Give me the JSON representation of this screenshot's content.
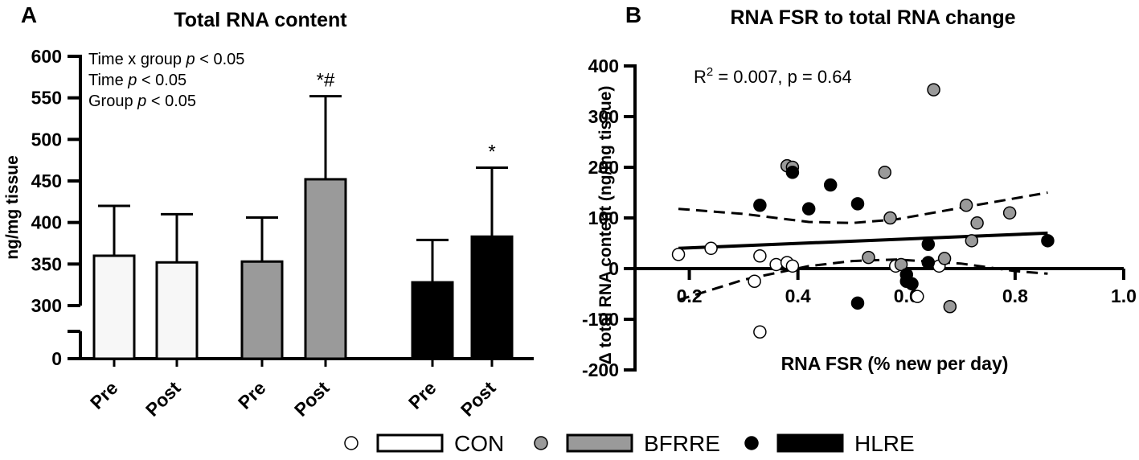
{
  "chart_data": [
    {
      "panel_label": "A",
      "type": "bar",
      "title": "Total RNA content",
      "ylabel": "ng/mg tissue",
      "xlabel": "",
      "y_axis": {
        "segments": [
          [
            0,
            0
          ],
          [
            300,
            600
          ]
        ],
        "lower_ticks": [
          0
        ],
        "upper_ticks": [
          300,
          350,
          400,
          450,
          500,
          550,
          600
        ],
        "note": "broken axis between 0 and 300"
      },
      "categories": [
        "Pre",
        "Post",
        "Pre",
        "Post",
        "Pre",
        "Post"
      ],
      "groups": [
        "CON",
        "CON",
        "BFRRE",
        "BFRRE",
        "HLRE",
        "HLRE"
      ],
      "values": [
        360,
        352,
        353,
        452,
        328,
        383
      ],
      "error_upper": [
        420,
        410,
        406,
        552,
        379,
        466
      ],
      "significance_labels": [
        "",
        "",
        "",
        "*#",
        "",
        "*"
      ],
      "stats_annotation": [
        {
          "prefix": "Time x group ",
          "italic": "p",
          "suffix": " < 0.05"
        },
        {
          "prefix": "Time ",
          "italic": "p",
          "suffix": " < 0.05"
        },
        {
          "prefix": "Group ",
          "italic": "p",
          "suffix": " < 0.05"
        }
      ]
    },
    {
      "panel_label": "B",
      "type": "scatter",
      "title": "RNA FSR to total RNA change",
      "xlabel": "RNA FSR (% new per day)",
      "ylabel": "Δ total RNA content (ng/mg tissue)",
      "xlim": [
        0.1,
        1.0
      ],
      "ylim": [
        -200,
        400
      ],
      "xticks": [
        "0.2",
        "0.4",
        "0.6",
        "0.8",
        "1.0"
      ],
      "yticks": [
        "-200",
        "-100",
        "0",
        "100",
        "200",
        "300",
        "400"
      ],
      "annotation": {
        "prefix": "R",
        "sup": "2",
        "suffix": " = 0.007, p = 0.64"
      },
      "series": [
        {
          "name": "CON",
          "points": [
            [
              0.18,
              28
            ],
            [
              0.24,
              40
            ],
            [
              0.32,
              -25
            ],
            [
              0.33,
              25
            ],
            [
              0.33,
              -125
            ],
            [
              0.36,
              8
            ],
            [
              0.38,
              12
            ],
            [
              0.39,
              5
            ],
            [
              0.58,
              5
            ],
            [
              0.62,
              -55
            ],
            [
              0.66,
              5
            ]
          ]
        },
        {
          "name": "BFRRE",
          "points": [
            [
              0.38,
              203
            ],
            [
              0.39,
              200
            ],
            [
              0.53,
              22
            ],
            [
              0.56,
              190
            ],
            [
              0.57,
              100
            ],
            [
              0.59,
              8
            ],
            [
              0.65,
              353
            ],
            [
              0.67,
              20
            ],
            [
              0.68,
              -75
            ],
            [
              0.71,
              125
            ],
            [
              0.72,
              55
            ],
            [
              0.73,
              90
            ],
            [
              0.79,
              110
            ]
          ]
        },
        {
          "name": "HLRE",
          "points": [
            [
              0.33,
              125
            ],
            [
              0.39,
              190
            ],
            [
              0.42,
              118
            ],
            [
              0.46,
              165
            ],
            [
              0.51,
              -68
            ],
            [
              0.51,
              128
            ],
            [
              0.6,
              -12
            ],
            [
              0.6,
              -25
            ],
            [
              0.61,
              -30
            ],
            [
              0.64,
              48
            ],
            [
              0.64,
              12
            ],
            [
              0.86,
              55
            ]
          ]
        }
      ],
      "regression": {
        "x": [
          0.18,
          0.86
        ],
        "y": [
          40,
          70
        ]
      },
      "confidence_band": {
        "upper": [
          [
            0.18,
            118
          ],
          [
            0.3,
            108
          ],
          [
            0.42,
            92
          ],
          [
            0.5,
            90
          ],
          [
            0.58,
            97
          ],
          [
            0.7,
            120
          ],
          [
            0.86,
            150
          ]
        ],
        "lower": [
          [
            0.18,
            -62
          ],
          [
            0.3,
            -22
          ],
          [
            0.42,
            5
          ],
          [
            0.5,
            15
          ],
          [
            0.58,
            18
          ],
          [
            0.7,
            10
          ],
          [
            0.8,
            -5
          ],
          [
            0.86,
            -10
          ]
        ]
      }
    }
  ],
  "legend": [
    {
      "name": "CON",
      "color": "#ffffff"
    },
    {
      "name": "BFRRE",
      "color": "#9a9a9a"
    },
    {
      "name": "HLRE",
      "color": "#000000"
    }
  ],
  "colors": {
    "CON": "#f7f7f7",
    "BFRRE": "#9a9a9a",
    "HLRE": "#000000",
    "CON_marker": "#ffffff",
    "BFRRE_marker": "#9a9a9a",
    "HLRE_marker": "#000000"
  }
}
